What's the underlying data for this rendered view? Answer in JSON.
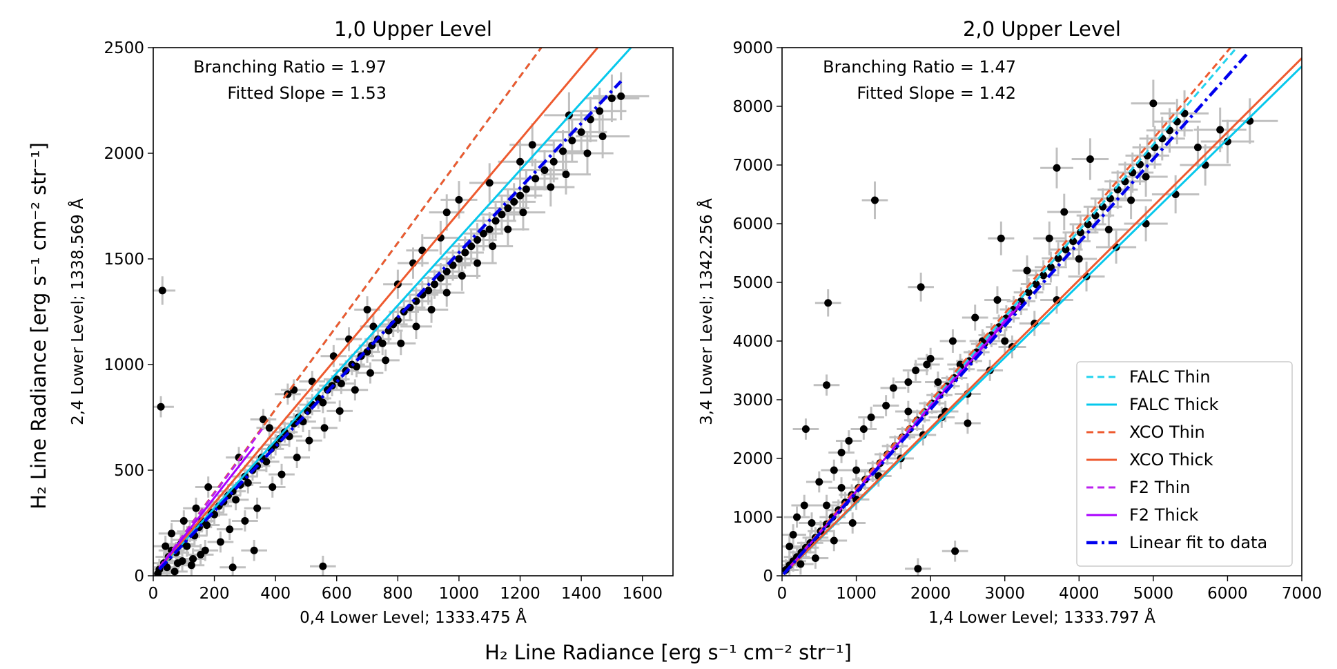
{
  "figure": {
    "supxlabel": "H₂ Line Radiance [erg s⁻¹ cm⁻² str⁻¹]",
    "supylabel": "H₂ Line Radiance [erg s⁻¹ cm⁻² str⁻¹]"
  },
  "chart_data": [
    {
      "type": "scatter",
      "title": "1,0 Upper Level",
      "xlabel": "0,4 Lower Level; 1333.475 Å",
      "ylabel": "2,4 Lower Level; 1338.569 Å",
      "xlim": [
        0,
        1700
      ],
      "ylim": [
        0,
        2500
      ],
      "xticks": [
        0,
        200,
        400,
        600,
        800,
        1000,
        1200,
        1400,
        1600
      ],
      "yticks": [
        0,
        500,
        1000,
        1500,
        2000,
        2500
      ],
      "annotations": [
        "Branching Ratio = 1.97",
        "Fitted Slope = 1.53"
      ],
      "marker_color": "#000000",
      "errorbar_color": "#c0c0c0",
      "points": [
        [
          20,
          30
        ],
        [
          35,
          60
        ],
        [
          50,
          90
        ],
        [
          60,
          120
        ],
        [
          75,
          110
        ],
        [
          90,
          150
        ],
        [
          100,
          170
        ],
        [
          110,
          140
        ],
        [
          120,
          210
        ],
        [
          135,
          190
        ],
        [
          150,
          230
        ],
        [
          160,
          260
        ],
        [
          175,
          240
        ],
        [
          190,
          300
        ],
        [
          200,
          290
        ],
        [
          215,
          330
        ],
        [
          230,
          350
        ],
        [
          245,
          380
        ],
        [
          260,
          400
        ],
        [
          270,
          360
        ],
        [
          285,
          430
        ],
        [
          300,
          470
        ],
        [
          310,
          440
        ],
        [
          325,
          500
        ],
        [
          340,
          520
        ],
        [
          355,
          560
        ],
        [
          370,
          540
        ],
        [
          385,
          600
        ],
        [
          400,
          620
        ],
        [
          415,
          650
        ],
        [
          430,
          680
        ],
        [
          445,
          660
        ],
        [
          460,
          720
        ],
        [
          475,
          750
        ],
        [
          490,
          730
        ],
        [
          505,
          780
        ],
        [
          520,
          810
        ],
        [
          540,
          840
        ],
        [
          555,
          820
        ],
        [
          570,
          880
        ],
        [
          585,
          900
        ],
        [
          600,
          930
        ],
        [
          615,
          910
        ],
        [
          630,
          970
        ],
        [
          650,
          1000
        ],
        [
          665,
          990
        ],
        [
          680,
          1040
        ],
        [
          700,
          1060
        ],
        [
          715,
          1090
        ],
        [
          735,
          1120
        ],
        [
          750,
          1100
        ],
        [
          770,
          1160
        ],
        [
          785,
          1190
        ],
        [
          800,
          1210
        ],
        [
          820,
          1250
        ],
        [
          840,
          1270
        ],
        [
          860,
          1300
        ],
        [
          880,
          1330
        ],
        [
          900,
          1350
        ],
        [
          920,
          1380
        ],
        [
          940,
          1410
        ],
        [
          960,
          1440
        ],
        [
          980,
          1470
        ],
        [
          1000,
          1500
        ],
        [
          1020,
          1530
        ],
        [
          1040,
          1560
        ],
        [
          1060,
          1590
        ],
        [
          1080,
          1620
        ],
        [
          1100,
          1640
        ],
        [
          1120,
          1680
        ],
        [
          1140,
          1710
        ],
        [
          1160,
          1740
        ],
        [
          1180,
          1770
        ],
        [
          1200,
          1800
        ],
        [
          1220,
          1830
        ],
        [
          1250,
          1880
        ],
        [
          1280,
          1920
        ],
        [
          1310,
          1960
        ],
        [
          1340,
          2010
        ],
        [
          1370,
          2060
        ],
        [
          1400,
          2100
        ],
        [
          1430,
          2160
        ],
        [
          1460,
          2200
        ],
        [
          1500,
          2260
        ],
        [
          1530,
          2270
        ],
        [
          30,
          1350
        ],
        [
          25,
          800
        ],
        [
          555,
          45
        ],
        [
          330,
          120
        ],
        [
          260,
          40
        ],
        [
          880,
          1540
        ],
        [
          960,
          1720
        ],
        [
          850,
          1480
        ],
        [
          640,
          1120
        ],
        [
          700,
          1260
        ],
        [
          590,
          1040
        ],
        [
          460,
          880
        ],
        [
          380,
          700
        ],
        [
          1100,
          1860
        ],
        [
          1000,
          1780
        ],
        [
          940,
          1600
        ],
        [
          1200,
          1960
        ],
        [
          1240,
          2040
        ],
        [
          1360,
          2180
        ],
        [
          800,
          1380
        ],
        [
          720,
          1180
        ],
        [
          520,
          920
        ],
        [
          440,
          860
        ],
        [
          360,
          740
        ],
        [
          280,
          560
        ],
        [
          180,
          420
        ],
        [
          140,
          320
        ],
        [
          100,
          260
        ],
        [
          60,
          200
        ],
        [
          40,
          140
        ],
        [
          80,
          60
        ],
        [
          130,
          80
        ],
        [
          170,
          120
        ],
        [
          220,
          160
        ],
        [
          250,
          220
        ],
        [
          300,
          260
        ],
        [
          340,
          320
        ],
        [
          390,
          420
        ],
        [
          420,
          480
        ],
        [
          470,
          560
        ],
        [
          510,
          640
        ],
        [
          560,
          700
        ],
        [
          610,
          780
        ],
        [
          660,
          880
        ],
        [
          710,
          960
        ],
        [
          760,
          1020
        ],
        [
          810,
          1100
        ],
        [
          860,
          1180
        ],
        [
          910,
          1260
        ],
        [
          960,
          1340
        ],
        [
          1010,
          1420
        ],
        [
          1060,
          1480
        ],
        [
          1110,
          1560
        ],
        [
          1160,
          1640
        ],
        [
          1210,
          1720
        ],
        [
          1300,
          1840
        ],
        [
          1350,
          1900
        ],
        [
          1420,
          2000
        ],
        [
          1470,
          2080
        ],
        [
          15,
          10
        ],
        [
          45,
          40
        ],
        [
          70,
          20
        ],
        [
          95,
          70
        ],
        [
          125,
          50
        ],
        [
          155,
          100
        ]
      ],
      "series": [
        {
          "name": "FALC Thin",
          "color": "#22d3ee",
          "dash": "dashed",
          "slope": 1.97,
          "x": [
            20,
            1272
          ]
        },
        {
          "name": "FALC Thick",
          "color": "#06c8ec",
          "dash": "solid",
          "slope": 1.6,
          "x": [
            20,
            1562
          ]
        },
        {
          "name": "XCO Thin",
          "color": "#ee5a2f",
          "dash": "dashed",
          "slope": 1.97,
          "x": [
            20,
            1272
          ]
        },
        {
          "name": "XCO Thick",
          "color": "#ee5a2f",
          "dash": "solid",
          "slope": 1.72,
          "x": [
            20,
            1453
          ]
        },
        {
          "name": "F2 Thin",
          "color": "#bb22ee",
          "dash": "dashed",
          "slope": 1.95,
          "x": [
            20,
            360
          ]
        },
        {
          "name": "F2 Thick",
          "color": "#aa00ff",
          "dash": "solid",
          "slope": 1.85,
          "x": [
            20,
            330
          ]
        },
        {
          "name": "Linear fit to data",
          "color": "#0000ee",
          "dash": "dashdot",
          "slope": 1.53,
          "x": [
            20,
            1530
          ]
        }
      ]
    },
    {
      "type": "scatter",
      "title": "2,0 Upper Level",
      "xlabel": "1,4 Lower Level; 1333.797 Å",
      "ylabel": "3,4 Lower Level; 1342.256 Å",
      "xlim": [
        0,
        7000
      ],
      "ylim": [
        0,
        9000
      ],
      "xticks": [
        0,
        1000,
        2000,
        3000,
        4000,
        5000,
        6000,
        7000
      ],
      "yticks": [
        0,
        1000,
        2000,
        3000,
        4000,
        5000,
        6000,
        7000,
        8000,
        9000
      ],
      "annotations": [
        "Branching Ratio = 1.47",
        "Fitted Slope = 1.42"
      ],
      "marker_color": "#000000",
      "errorbar_color": "#c0c0c0",
      "legend": {
        "position": "lower-right",
        "entries": [
          "FALC Thin",
          "FALC Thick",
          "XCO Thin",
          "XCO Thick",
          "F2 Thin",
          "F2 Thick",
          "Linear fit to data"
        ]
      },
      "points": [
        [
          50,
          100
        ],
        [
          100,
          180
        ],
        [
          150,
          250
        ],
        [
          200,
          320
        ],
        [
          260,
          400
        ],
        [
          320,
          480
        ],
        [
          380,
          560
        ],
        [
          450,
          650
        ],
        [
          520,
          760
        ],
        [
          600,
          880
        ],
        [
          680,
          1000
        ],
        [
          760,
          1120
        ],
        [
          850,
          1250
        ],
        [
          940,
          1380
        ],
        [
          1030,
          1500
        ],
        [
          1120,
          1640
        ],
        [
          1220,
          1780
        ],
        [
          1320,
          1920
        ],
        [
          1420,
          2070
        ],
        [
          1520,
          2210
        ],
        [
          1620,
          2360
        ],
        [
          1720,
          2500
        ],
        [
          1820,
          2650
        ],
        [
          1920,
          2790
        ],
        [
          2020,
          2940
        ],
        [
          2120,
          3080
        ],
        [
          2220,
          3230
        ],
        [
          2320,
          3370
        ],
        [
          2420,
          3520
        ],
        [
          2520,
          3660
        ],
        [
          2620,
          3810
        ],
        [
          2720,
          3950
        ],
        [
          2820,
          4100
        ],
        [
          2920,
          4240
        ],
        [
          3020,
          4390
        ],
        [
          3120,
          4540
        ],
        [
          3220,
          4680
        ],
        [
          3320,
          4830
        ],
        [
          3420,
          4970
        ],
        [
          3520,
          5120
        ],
        [
          3620,
          5260
        ],
        [
          3720,
          5410
        ],
        [
          3820,
          5560
        ],
        [
          3920,
          5700
        ],
        [
          4020,
          5850
        ],
        [
          4120,
          5990
        ],
        [
          4220,
          6140
        ],
        [
          4320,
          6290
        ],
        [
          4420,
          6430
        ],
        [
          4520,
          6580
        ],
        [
          4620,
          6720
        ],
        [
          4720,
          6870
        ],
        [
          4820,
          7010
        ],
        [
          4920,
          7160
        ],
        [
          5020,
          7300
        ],
        [
          5120,
          7450
        ],
        [
          5220,
          7590
        ],
        [
          5320,
          7740
        ],
        [
          5420,
          7880
        ],
        [
          5900,
          7600
        ],
        [
          6300,
          7750
        ],
        [
          5000,
          8050
        ],
        [
          1250,
          6400
        ],
        [
          620,
          4650
        ],
        [
          1870,
          4920
        ],
        [
          2330,
          420
        ],
        [
          1830,
          120
        ],
        [
          320,
          2500
        ],
        [
          3700,
          6950
        ],
        [
          4150,
          7100
        ],
        [
          2950,
          5750
        ],
        [
          3600,
          5750
        ],
        [
          3800,
          6200
        ],
        [
          4900,
          6800
        ],
        [
          5600,
          7300
        ],
        [
          4000,
          5400
        ],
        [
          4400,
          5900
        ],
        [
          4700,
          6400
        ],
        [
          3300,
          5200
        ],
        [
          2900,
          4700
        ],
        [
          2600,
          4400
        ],
        [
          2300,
          4000
        ],
        [
          2000,
          3700
        ],
        [
          1700,
          3300
        ],
        [
          1400,
          2900
        ],
        [
          1100,
          2500
        ],
        [
          800,
          2100
        ],
        [
          500,
          1600
        ],
        [
          300,
          1200
        ],
        [
          150,
          700
        ],
        [
          1000,
          1300
        ],
        [
          1300,
          1700
        ],
        [
          1600,
          2000
        ],
        [
          1900,
          2400
        ],
        [
          2200,
          2800
        ],
        [
          2500,
          3100
        ],
        [
          2800,
          3500
        ],
        [
          3100,
          3900
        ],
        [
          3400,
          4300
        ],
        [
          3700,
          4700
        ],
        [
          4100,
          5100
        ],
        [
          4500,
          5600
        ],
        [
          4900,
          6000
        ],
        [
          5300,
          6500
        ],
        [
          5700,
          7000
        ],
        [
          6000,
          7400
        ],
        [
          700,
          1800
        ],
        [
          900,
          2300
        ],
        [
          1200,
          2700
        ],
        [
          1500,
          3200
        ],
        [
          1800,
          3500
        ],
        [
          2100,
          3300
        ],
        [
          2400,
          3600
        ],
        [
          2700,
          4000
        ],
        [
          3000,
          4000
        ],
        [
          600,
          3250
        ],
        [
          1950,
          3600
        ],
        [
          1700,
          2800
        ],
        [
          2150,
          2700
        ],
        [
          2500,
          2600
        ],
        [
          200,
          1000
        ],
        [
          400,
          900
        ],
        [
          600,
          1200
        ],
        [
          800,
          1500
        ],
        [
          1000,
          1800
        ],
        [
          100,
          500
        ],
        [
          250,
          200
        ],
        [
          450,
          300
        ],
        [
          700,
          600
        ],
        [
          950,
          900
        ]
      ],
      "series": [
        {
          "name": "FALC Thin",
          "color": "#22d3ee",
          "dash": "dashed",
          "slope": 1.47,
          "x": [
            20,
            6122
          ]
        },
        {
          "name": "FALC Thick",
          "color": "#06c8ec",
          "dash": "solid",
          "slope": 1.24,
          "x": [
            20,
            7000
          ]
        },
        {
          "name": "XCO Thin",
          "color": "#ee5a2f",
          "dash": "dashed",
          "slope": 1.49,
          "x": [
            20,
            6040
          ]
        },
        {
          "name": "XCO Thick",
          "color": "#ee5a2f",
          "dash": "solid",
          "slope": 1.26,
          "x": [
            20,
            7000
          ]
        },
        {
          "name": "F2 Thin",
          "color": "#bb22ee",
          "dash": "dashed",
          "slope": 1.45,
          "x": [
            20,
            3250
          ]
        },
        {
          "name": "F2 Thick",
          "color": "#aa00ff",
          "dash": "solid",
          "slope": 1.44,
          "x": [
            20,
            3200
          ]
        },
        {
          "name": "Linear fit to data",
          "color": "#0000ee",
          "dash": "dashdot",
          "slope": 1.42,
          "x": [
            20,
            6280
          ]
        }
      ]
    }
  ]
}
